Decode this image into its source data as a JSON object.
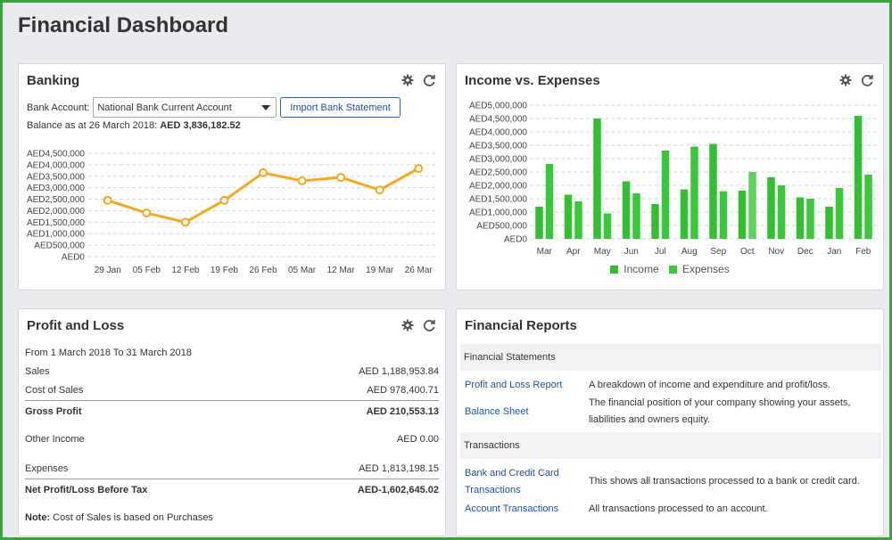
{
  "page_title": "Financial Dashboard",
  "icons": {
    "settings": "gear-icon",
    "refresh": "refresh-icon"
  },
  "colors": {
    "accent_border": "#3aa33a",
    "line": "#f5a623",
    "income": "#32c032",
    "expenses": "#3bc73b",
    "link": "#1f4f9e"
  },
  "banking": {
    "title": "Banking",
    "account_label": "Bank Account:",
    "account_value": "National Bank Current Account",
    "import_button": "Import Bank Statement",
    "balance_prefix": "Balance as at 26 March 2018:",
    "balance_value": "AED 3,836,182.52"
  },
  "income_expenses": {
    "title": "Income vs. Expenses"
  },
  "profit_loss": {
    "title": "Profit and Loss",
    "range": "From 1 March 2018 To 31 March 2018",
    "rows": [
      {
        "label": "Sales",
        "value": "AED 1,188,953.84"
      },
      {
        "label": "Cost of Sales",
        "value": "AED 978,400.71"
      },
      {
        "label": "Gross Profit",
        "value": "AED 210,553.13"
      },
      {
        "label": "Other Income",
        "value": "AED 0.00"
      },
      {
        "label": "Expenses",
        "value": "AED 1,813,198.15"
      },
      {
        "label": "Net Profit/Loss Before Tax",
        "value": "AED-1,602,645.02"
      }
    ],
    "note_label": "Note:",
    "note_text": "Cost of Sales is based on Purchases"
  },
  "reports": {
    "title": "Financial Reports",
    "section_statements": "Financial Statements",
    "section_transactions": "Transactions",
    "items": [
      {
        "link": "Profit and Loss Report",
        "desc": "A breakdown of income and expenditure and profit/loss."
      },
      {
        "link": "Balance Sheet",
        "desc": "The financial position of your company showing your assets, liabilities and owners equity."
      },
      {
        "link": "Bank and Credit Card Transactions",
        "desc": "This shows all transactions processed to a bank or credit card."
      },
      {
        "link": "Account Transactions",
        "desc": "All transactions processed to an account."
      }
    ]
  },
  "chart_data": [
    {
      "type": "line",
      "categories": [
        "29 Jan",
        "05 Feb",
        "12 Feb",
        "19 Feb",
        "26 Feb",
        "05 Mar",
        "12 Mar",
        "19 Mar",
        "26 Mar"
      ],
      "values": [
        2450000,
        1900000,
        1500000,
        2450000,
        3650000,
        3300000,
        3450000,
        2900000,
        3836182
      ],
      "ylim": [
        0,
        4500000
      ],
      "yticks": [
        "AED0",
        "AED500,000",
        "AED1,000,000",
        "AED1,500,000",
        "AED2,000,000",
        "AED2,500,000",
        "AED3,000,000",
        "AED3,500,000",
        "AED4,000,000",
        "AED4,500,000"
      ],
      "grid": true
    },
    {
      "type": "bar",
      "categories": [
        "Mar",
        "Apr",
        "May",
        "Jun",
        "Jul",
        "Aug",
        "Sep",
        "Oct",
        "Nov",
        "Dec",
        "Jan",
        "Feb"
      ],
      "series": [
        {
          "name": "Income",
          "values": [
            1200000,
            1650000,
            4500000,
            2150000,
            1300000,
            1850000,
            3550000,
            1800000,
            2300000,
            1550000,
            1200000,
            4600000
          ]
        },
        {
          "name": "Expenses",
          "values": [
            2800000,
            1400000,
            950000,
            1700000,
            3300000,
            3450000,
            1780000,
            2500000,
            2000000,
            1500000,
            1900000,
            2400000
          ]
        }
      ],
      "ylim": [
        0,
        5000000
      ],
      "yticks": [
        "AED0",
        "AED500,000",
        "AED1,000,000",
        "AED1,500,000",
        "AED2,000,000",
        "AED2,500,000",
        "AED3,000,000",
        "AED3,500,000",
        "AED4,000,000",
        "AED4,500,000",
        "AED5,000,000"
      ],
      "legend": "bottom",
      "grid": true
    }
  ]
}
